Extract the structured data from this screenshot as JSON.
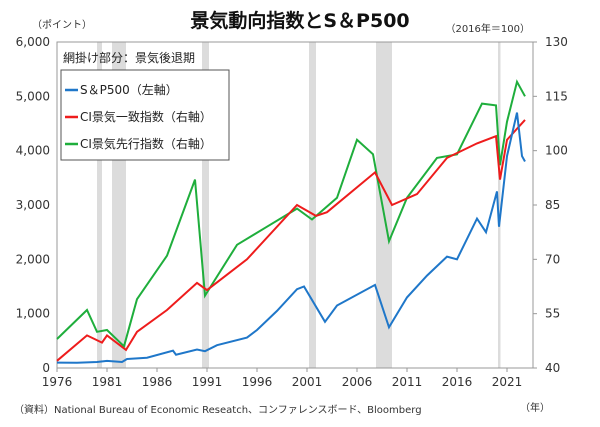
{
  "chart_data": {
    "type": "line",
    "title": "景気動向指数とS＆P500",
    "left_unit": "（ポイント）",
    "right_unit": "（2016年＝100）",
    "x_unit": "（年）",
    "source": "（資料）National Bureau of Economic Reseatch、コンファレンスボード、Bloomberg",
    "shading_note": "網掛け部分：景気後退期",
    "xlim": [
      1976,
      2023.6
    ],
    "ylim_left": [
      0,
      6000
    ],
    "ylim_right": [
      40,
      130
    ],
    "x_ticks": [
      "1976",
      "1981",
      "1986",
      "1991",
      "1996",
      "2001",
      "2006",
      "2011",
      "2016",
      "2021"
    ],
    "y_left_ticks": [
      "0",
      "1,000",
      "2,000",
      "3,000",
      "4,000",
      "5,000",
      "6,000"
    ],
    "y_right_ticks": [
      "40",
      "55",
      "70",
      "85",
      "100",
      "115",
      "130"
    ],
    "recessions": [
      [
        1980.0,
        1980.5
      ],
      [
        1981.5,
        1982.9
      ],
      [
        1990.5,
        1991.2
      ],
      [
        2001.2,
        2001.9
      ],
      [
        2007.9,
        2009.5
      ],
      [
        2020.1,
        2020.35
      ]
    ],
    "series": [
      {
        "name": "S＆P500（左軸）",
        "axis": "left",
        "color": "#1f77c9",
        "x": [
          1976,
          1978,
          1980,
          1981,
          1982.5,
          1983,
          1985,
          1987.6,
          1987.9,
          1990,
          1990.8,
          1992,
          1995,
          1996,
          1998,
          2000,
          2000.7,
          2002.8,
          2004,
          2007.8,
          2009.2,
          2011,
          2013,
          2015,
          2016,
          2018,
          2018.9,
          2020,
          2020.2,
          2021,
          2022,
          2022.5,
          2022.8
        ],
        "y": [
          100,
          95,
          110,
          130,
          110,
          165,
          190,
          320,
          245,
          340,
          310,
          420,
          560,
          700,
          1050,
          1450,
          1500,
          850,
          1150,
          1530,
          750,
          1300,
          1700,
          2050,
          2000,
          2750,
          2500,
          3250,
          2600,
          3900,
          4700,
          3900,
          3800
        ]
      },
      {
        "name": "CI景気一致指数（右軸）",
        "axis": "right",
        "color": "#ee1c1c",
        "x": [
          1976,
          1979,
          1980.5,
          1981,
          1982.9,
          1984,
          1987,
          1990,
          1991,
          1995,
          2000,
          2001.9,
          2003,
          2007.8,
          2009.5,
          2012,
          2015,
          2018,
          2019.9,
          2020.3,
          2021,
          2022.8
        ],
        "y": [
          42,
          49,
          47,
          49,
          45,
          50,
          56,
          63.5,
          61.5,
          70,
          85,
          82,
          83,
          94,
          85,
          88,
          98,
          102,
          104,
          92,
          103,
          108.5
        ]
      },
      {
        "name": "CI景気先行指数（右軸）",
        "axis": "right",
        "color": "#1fae3c",
        "x": [
          1976,
          1979,
          1980,
          1981,
          1982.7,
          1984,
          1987,
          1989.8,
          1990.8,
          1994,
          1997,
          2000,
          2001.5,
          2004,
          2006,
          2007.6,
          2009.2,
          2011,
          2014,
          2016,
          2018.5,
          2019.9,
          2020.3,
          2021,
          2022,
          2022.8
        ],
        "y": [
          48,
          56,
          50,
          50.5,
          46,
          59,
          71,
          92,
          60,
          74,
          79,
          84,
          81,
          87,
          103,
          99,
          75,
          87,
          98,
          99,
          113,
          112.5,
          96,
          108,
          119,
          115
        ]
      }
    ]
  }
}
